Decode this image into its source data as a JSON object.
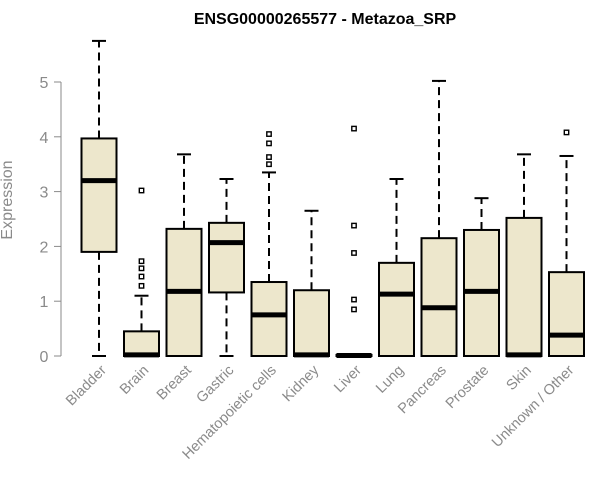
{
  "chart_data": {
    "type": "box",
    "title": "ENSG00000265577 - Metazoa_SRP",
    "xlabel": "",
    "ylabel": "Expression",
    "ylim": [
      0,
      5.75
    ],
    "yticks": [
      0,
      1,
      2,
      3,
      4,
      5
    ],
    "grid": false,
    "box_fill": "#ede7cc",
    "box_stroke": "#000000",
    "outlier_color": "#000000",
    "categories": [
      "Bladder",
      "Brain",
      "Breast",
      "Gastric",
      "Hematopoietic cells",
      "Kidney",
      "Liver",
      "Lung",
      "Pancreas",
      "Prostate",
      "Skin",
      "Unknown / Other"
    ],
    "boxes": [
      {
        "min": 0.0,
        "q1": 1.9,
        "median": 3.2,
        "q3": 3.97,
        "max": 5.75,
        "outliers": []
      },
      {
        "min": 0.0,
        "q1": 0.0,
        "median": 0.02,
        "q3": 0.45,
        "max": 1.1,
        "outliers": [
          3.02,
          1.73,
          1.6,
          1.45,
          1.28
        ]
      },
      {
        "min": 0.0,
        "q1": 0.0,
        "median": 1.18,
        "q3": 2.32,
        "max": 3.68,
        "outliers": []
      },
      {
        "min": 0.0,
        "q1": 1.16,
        "median": 2.07,
        "q3": 2.43,
        "max": 3.23,
        "outliers": []
      },
      {
        "min": 0.0,
        "q1": 0.0,
        "median": 0.75,
        "q3": 1.35,
        "max": 3.35,
        "outliers": [
          4.05,
          3.88,
          3.63,
          3.5
        ]
      },
      {
        "min": 0.0,
        "q1": 0.0,
        "median": 0.02,
        "q3": 1.2,
        "max": 2.65,
        "outliers": []
      },
      {
        "min": 0.0,
        "q1": 0.0,
        "median": 0.01,
        "q3": 0.02,
        "max": 0.03,
        "outliers": [
          4.15,
          2.38,
          1.88,
          1.03,
          0.85
        ]
      },
      {
        "min": 0.0,
        "q1": 0.0,
        "median": 1.13,
        "q3": 1.7,
        "max": 3.23,
        "outliers": []
      },
      {
        "min": 0.0,
        "q1": 0.0,
        "median": 0.88,
        "q3": 2.15,
        "max": 5.02,
        "outliers": []
      },
      {
        "min": 0.0,
        "q1": 0.0,
        "median": 1.18,
        "q3": 2.3,
        "max": 2.88,
        "outliers": []
      },
      {
        "min": 0.0,
        "q1": 0.0,
        "median": 0.02,
        "q3": 2.52,
        "max": 3.68,
        "outliers": []
      },
      {
        "min": 0.0,
        "q1": 0.0,
        "median": 0.38,
        "q3": 1.53,
        "max": 3.65,
        "outliers": [
          4.08
        ]
      }
    ]
  }
}
